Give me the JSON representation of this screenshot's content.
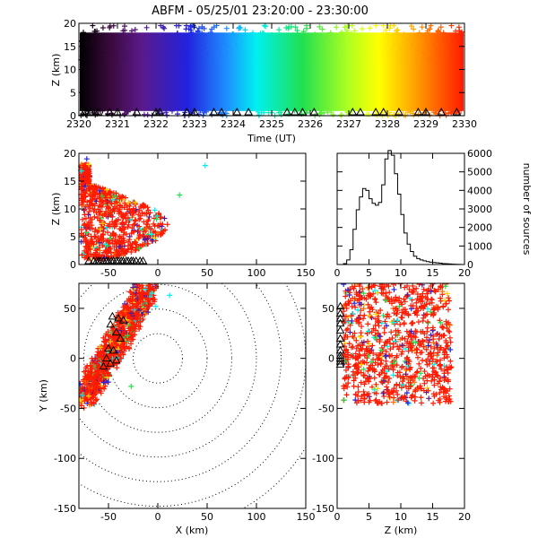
{
  "chart_data": [
    {
      "id": "time-height",
      "type": "scatter",
      "title": "ABFM - 05/25/01 23:20:00 - 23:30:00",
      "xlabel": "Time (UT)",
      "ylabel": "Z (km)",
      "xlim": [
        2320,
        2330
      ],
      "ylim": [
        0,
        20
      ],
      "x_ticks": [
        "2320",
        "2321",
        "2322",
        "2323",
        "2324",
        "2325",
        "2326",
        "2327",
        "2328",
        "2329",
        "2330"
      ],
      "y_ticks": [
        "0",
        "5",
        "10",
        "15",
        "20"
      ],
      "color_scale": "time, black→purple→blue→cyan→green→yellow→orange→red",
      "source_band_km": [
        0,
        18
      ],
      "station_marker_times": [
        2320.2,
        2320.3,
        2320.5,
        2320.8,
        2321.0,
        2321.5,
        2322.0,
        2322.1,
        2322.8,
        2323.0,
        2323.5,
        2323.7,
        2324.1,
        2324.4,
        2325.4,
        2325.6,
        2325.8,
        2326.1,
        2327.1,
        2327.3,
        2327.7,
        2327.9,
        2328.3,
        2328.8,
        2329.0,
        2329.4,
        2329.8
      ]
    },
    {
      "id": "x-height",
      "type": "scatter",
      "xlabel": "",
      "ylabel": "Z (km)",
      "xlim": [
        -80,
        150
      ],
      "ylim": [
        0,
        20
      ],
      "x_ticks": [
        "-50",
        "0",
        "50",
        "100",
        "150"
      ],
      "y_ticks": [
        "0",
        "5",
        "10",
        "15",
        "20"
      ],
      "source_region_x_km": [
        -78,
        10
      ],
      "source_region_z_km": [
        1,
        18
      ],
      "station_markers_x_km": [
        -70,
        -65,
        -62,
        -60,
        -58,
        -55,
        -52,
        -50,
        -47,
        -45,
        -42,
        -40,
        -37,
        -35,
        -32,
        -30,
        -27,
        -25,
        -22,
        -18,
        -15
      ]
    },
    {
      "id": "height-histogram",
      "type": "line",
      "xlabel": "",
      "ylabel": "number of sources",
      "xlim": [
        0,
        20
      ],
      "ylim": [
        0,
        6000
      ],
      "x_ticks": [
        "0",
        "5",
        "10",
        "15",
        "20"
      ],
      "y_ticks": [
        "0",
        "1000",
        "2000",
        "3000",
        "4000",
        "5000",
        "6000"
      ],
      "x": [
        0,
        0.5,
        1,
        1.5,
        2,
        2.5,
        3,
        3.5,
        4,
        4.5,
        5,
        5.5,
        6,
        6.5,
        7,
        7.5,
        8,
        8.5,
        9,
        9.5,
        10,
        10.5,
        11,
        11.5,
        12,
        12.5,
        13,
        13.5,
        14,
        14.5,
        15,
        15.5,
        16,
        16.5,
        17,
        17.5,
        18,
        18.5,
        19,
        19.5,
        20
      ],
      "values": [
        0,
        0,
        50,
        250,
        800,
        1900,
        2950,
        3650,
        4100,
        4000,
        3550,
        3300,
        3200,
        3350,
        4300,
        5700,
        6150,
        5900,
        4900,
        3800,
        2700,
        1700,
        1100,
        700,
        450,
        320,
        250,
        200,
        160,
        130,
        110,
        90,
        70,
        50,
        40,
        30,
        20,
        10,
        5,
        0,
        0
      ]
    },
    {
      "id": "plan-view",
      "type": "scatter",
      "xlabel": "X (km)",
      "ylabel": "Y (km)",
      "xlim": [
        -80,
        150
      ],
      "ylim": [
        -150,
        75
      ],
      "x_ticks": [
        "-50",
        "0",
        "50",
        "100",
        "150"
      ],
      "y_ticks": [
        "-150",
        "-100",
        "-50",
        "0",
        "50"
      ],
      "range_rings_km": [
        25,
        50,
        75,
        100,
        125,
        150,
        175
      ],
      "ring_center_km": [
        0,
        0
      ],
      "stations_km": [
        [
          -46,
          42
        ],
        [
          -40,
          40
        ],
        [
          -35,
          38
        ],
        [
          -48,
          34
        ],
        [
          -42,
          26
        ],
        [
          -38,
          20
        ],
        [
          -45,
          8
        ],
        [
          -52,
          0
        ],
        [
          -48,
          -5
        ],
        [
          -55,
          -8
        ],
        [
          -42,
          -2
        ],
        [
          -50,
          10
        ]
      ]
    },
    {
      "id": "height-y",
      "type": "scatter",
      "xlabel": "Z (km)",
      "ylabel": "",
      "xlim": [
        0,
        20
      ],
      "ylim": [
        -150,
        75
      ],
      "x_ticks": [
        "0",
        "5",
        "10",
        "15",
        "20"
      ],
      "y_ticks": [
        "-150",
        "-100",
        "-50",
        "0",
        "50"
      ],
      "stations_y_km": [
        52,
        45,
        40,
        35,
        28,
        20,
        14,
        8,
        3,
        0,
        -3,
        -6
      ]
    }
  ]
}
